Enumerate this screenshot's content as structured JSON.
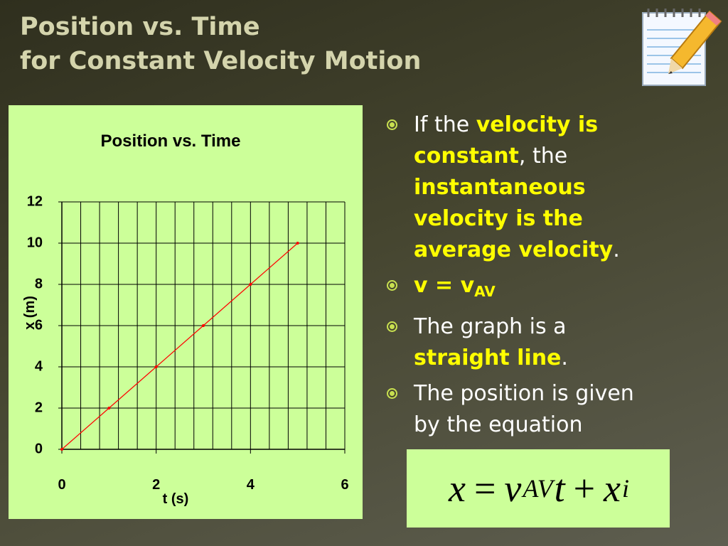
{
  "header": {
    "title_lines": [
      "Position vs. Time",
      "for Constant Velocity Motion"
    ]
  },
  "chart_data": {
    "type": "line",
    "title": "Position vs. Time",
    "xlabel": "t (s)",
    "ylabel": "x (m)",
    "x": [
      0,
      1,
      2,
      3,
      4,
      5
    ],
    "values": [
      0,
      2,
      4,
      6,
      8,
      10
    ],
    "color": "#ff0000",
    "xlim": [
      0,
      6
    ],
    "ylim": [
      0,
      12
    ],
    "xticks": [
      0,
      2,
      4,
      6
    ],
    "yticks": [
      0,
      2,
      4,
      6,
      8,
      10,
      12
    ],
    "xgrid": [
      0.4,
      0.8,
      1.2,
      1.6,
      2,
      2.4,
      2.8,
      3.2,
      3.6,
      4,
      4.4,
      4.8,
      5.2,
      5.6,
      6
    ],
    "grid": true
  },
  "bullets": [
    {
      "parts": [
        {
          "text": "If the ",
          "style": "plain"
        },
        {
          "text": "velocity is constant",
          "style": "bold"
        },
        {
          "text": ", the ",
          "style": "plain"
        },
        {
          "text": "instantaneous velocity is the average velocity",
          "style": "bold"
        },
        {
          "text": ".",
          "style": "plain"
        }
      ]
    },
    {
      "parts": [
        {
          "text": "v = v",
          "style": "bold"
        },
        {
          "text": "AV",
          "style": "boldsub"
        }
      ]
    },
    {
      "parts": [
        {
          "text": "The graph is a ",
          "style": "plain"
        },
        {
          "text": "straight line",
          "style": "bold"
        },
        {
          "text": ".",
          "style": "plain"
        }
      ]
    },
    {
      "parts": [
        {
          "text": "The position is given by the equation",
          "style": "plain"
        }
      ]
    }
  ],
  "equation": [
    {
      "text": "x",
      "style": "var"
    },
    {
      "text": "=",
      "style": "op"
    },
    {
      "text": "v",
      "style": "var"
    },
    {
      "text": "AV",
      "style": "sub"
    },
    {
      "text": "t",
      "style": "var"
    },
    {
      "text": "+",
      "style": "op"
    },
    {
      "text": "x",
      "style": "var"
    },
    {
      "text": "i",
      "style": "sub"
    }
  ]
}
